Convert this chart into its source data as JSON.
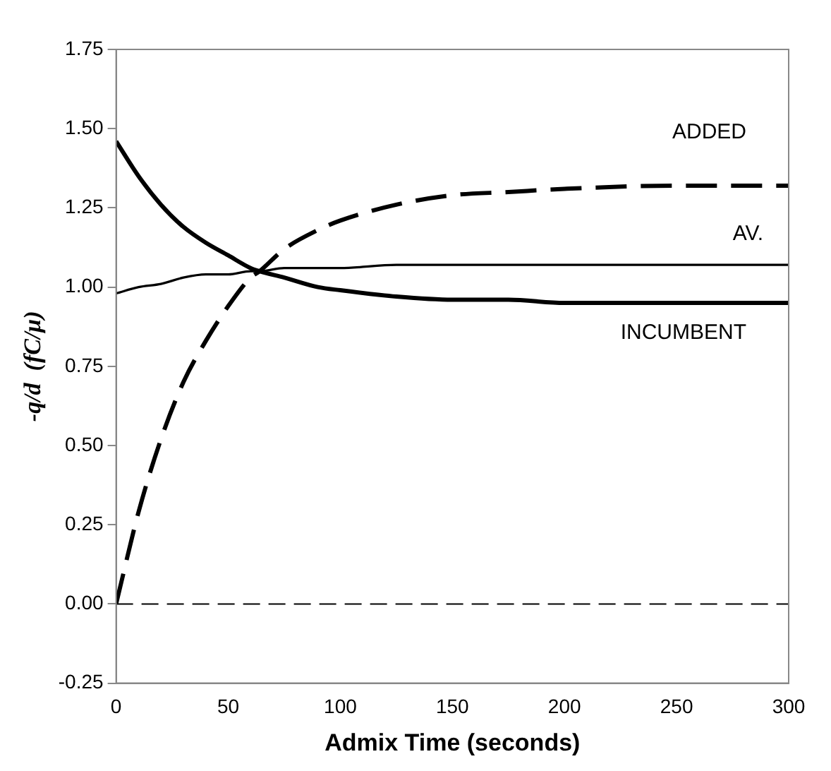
{
  "chart_data": {
    "type": "line",
    "xlabel": "Admix Time (seconds)",
    "ylabel": "-q/d  (fC/μ)",
    "xlim": [
      0,
      300
    ],
    "xticks": [
      0,
      50,
      100,
      150,
      200,
      250,
      300
    ],
    "ylim": [
      -0.25,
      1.75
    ],
    "yticks": [
      {
        "value": -0.25,
        "label": "-0.25"
      },
      {
        "value": 0,
        "label": "0.00"
      },
      {
        "value": 0.25,
        "label": "0.25"
      },
      {
        "value": 0.5,
        "label": "0.50"
      },
      {
        "value": 0.75,
        "label": "0.75"
      },
      {
        "value": 1,
        "label": "1.00"
      },
      {
        "value": 1.25,
        "label": "1.25"
      },
      {
        "value": 1.5,
        "label": "1.50"
      },
      {
        "value": 1.75,
        "label": "1.75"
      }
    ],
    "x": [
      0,
      10,
      20,
      30,
      40,
      50,
      60,
      64,
      75,
      90,
      100,
      125,
      150,
      175,
      200,
      250,
      300
    ],
    "series": [
      {
        "name": "ADDED",
        "color": "#000000",
        "line_style": "dashed",
        "values": [
          0,
          0.29,
          0.52,
          0.7,
          0.83,
          0.94,
          1.03,
          1.05,
          1.12,
          1.18,
          1.21,
          1.26,
          1.29,
          1.3,
          1.31,
          1.32,
          1.32
        ]
      },
      {
        "name": "AV.",
        "color": "#000000",
        "line_style": "solid",
        "values": [
          0.98,
          1.0,
          1.01,
          1.03,
          1.04,
          1.04,
          1.05,
          1.05,
          1.06,
          1.06,
          1.06,
          1.07,
          1.07,
          1.07,
          1.07,
          1.07,
          1.07
        ]
      },
      {
        "name": "INCUMBENT",
        "color": "#000000",
        "line_style": "solid",
        "values": [
          1.46,
          1.35,
          1.26,
          1.19,
          1.14,
          1.1,
          1.06,
          1.05,
          1.03,
          1.0,
          0.99,
          0.97,
          0.96,
          0.96,
          0.95,
          0.95,
          0.95
        ]
      }
    ],
    "ref_lines": [
      {
        "axis": "y",
        "value": 0,
        "line_style": "dashed",
        "color": "#000000"
      }
    ],
    "grid": false,
    "legend": false,
    "marker": "none"
  }
}
